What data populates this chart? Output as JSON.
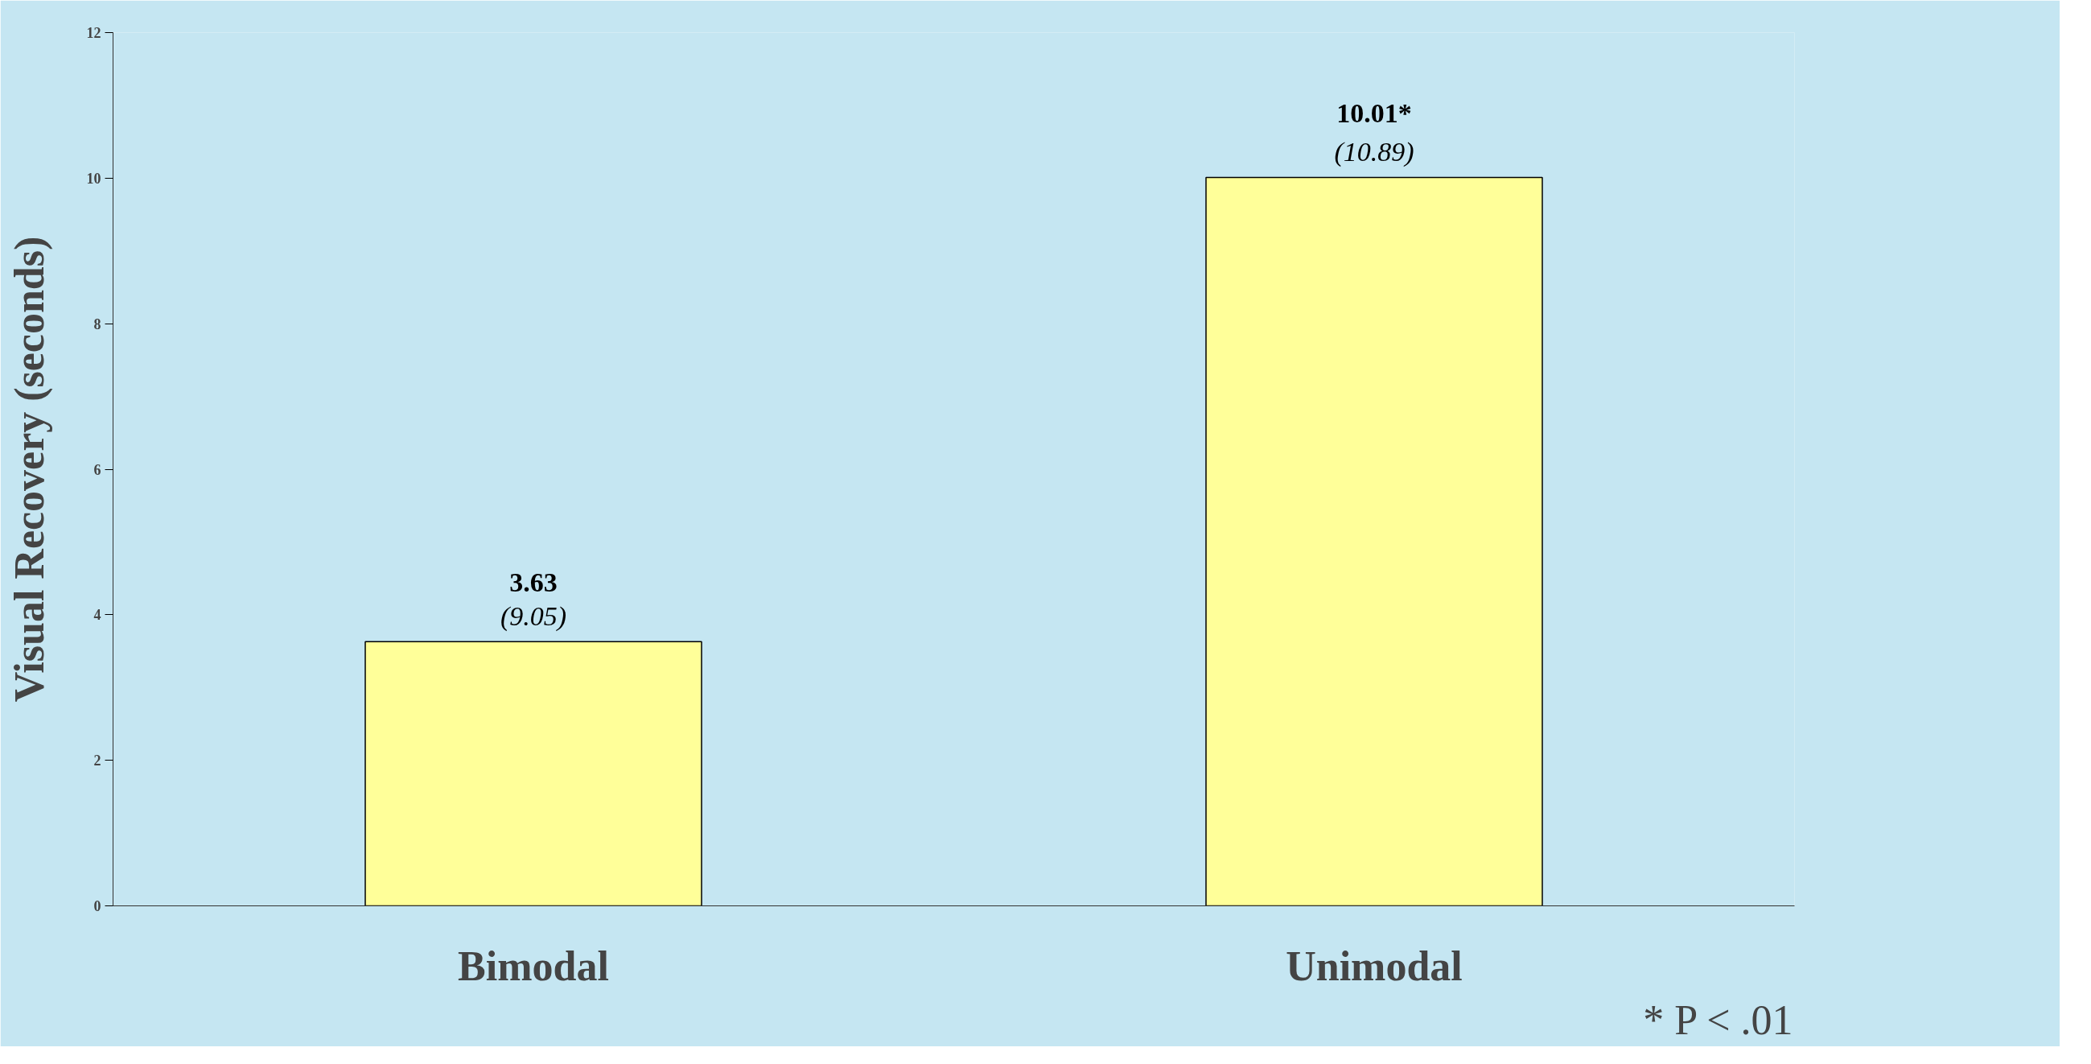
{
  "chart_data": {
    "type": "bar",
    "ylabel": "Visual Recovery (seconds)",
    "categories": [
      "Bimodal",
      "Unimodal"
    ],
    "values": [
      3.63,
      10.01
    ],
    "color": "#ffff99",
    "value_labels": [
      "3.63\n(9.05)",
      "10.01*\n(10.89)"
    ],
    "ylim": [
      0,
      12
    ],
    "yticks": [
      0,
      2,
      4,
      6,
      8,
      10,
      12
    ],
    "annotations": [
      "* P < .01"
    ]
  }
}
